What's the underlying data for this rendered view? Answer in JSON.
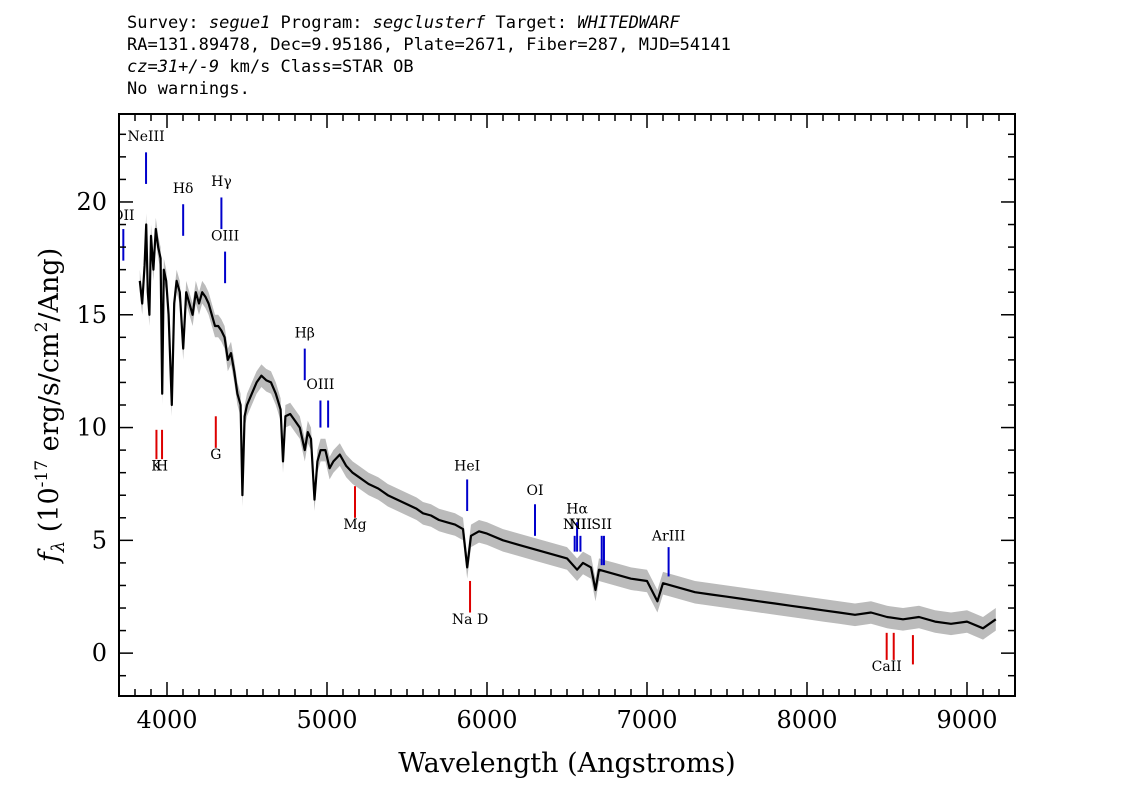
{
  "header": {
    "line1": {
      "survey_label": "Survey: ",
      "survey": "segue1",
      "program_label": " Program: ",
      "program": "segclusterf",
      "target_label": " Target: ",
      "target": "WHITEDWARF"
    },
    "line2": "RA=131.89478, Dec=9.95186, Plate=2671, Fiber=287, MJD=54141",
    "line3": {
      "cz": "cz=31+/-9",
      "rest": " km/s Class=STAR OB"
    },
    "line4": "No warnings."
  },
  "chart_data": {
    "type": "line",
    "xlabel": "Wavelength (Angstroms)",
    "ylabel": "f_λ (10^-17 erg/s/cm^2/Ang)",
    "ylabel_parts": {
      "f": "f",
      "sub": "λ",
      "pre": " (10",
      "exp": "-17",
      "mid": " erg/s/cm",
      "exp2": "2",
      "post": "/Ang)"
    },
    "xlim": [
      3700,
      9300
    ],
    "ylim": [
      -1.9,
      23.9
    ],
    "xticks": [
      4000,
      5000,
      6000,
      7000,
      8000,
      9000
    ],
    "yticks": [
      0,
      5,
      10,
      15,
      20
    ],
    "grid": false,
    "colors": {
      "flux": "#000000",
      "error_band": "#bbbbbb",
      "emission": "#0000cc",
      "absorption": "#dd0000"
    },
    "series": [
      {
        "x": [
          3830,
          3845,
          3860,
          3870,
          3880,
          3890,
          3900,
          3915,
          3930,
          3945,
          3960,
          3970,
          3980,
          3995,
          4010,
          4030,
          4045,
          4060,
          4080,
          4101,
          4120,
          4140,
          4160,
          4180,
          4200,
          4220,
          4240,
          4260,
          4280,
          4300,
          4320,
          4340,
          4360,
          4380,
          4400,
          4420,
          4440,
          4460,
          4471,
          4485,
          4500,
          4530,
          4560,
          4590,
          4620,
          4650,
          4680,
          4710,
          4725,
          4740,
          4770,
          4800,
          4830,
          4861,
          4880,
          4900,
          4922,
          4940,
          4960,
          4990,
          5016,
          5040,
          5080,
          5120,
          5160,
          5200,
          5260,
          5320,
          5380,
          5440,
          5500,
          5560,
          5600,
          5650,
          5700,
          5750,
          5800,
          5850,
          5876,
          5900,
          5950,
          6000,
          6100,
          6200,
          6300,
          6400,
          6500,
          6563,
          6600,
          6650,
          6678,
          6700,
          6750,
          6800,
          6900,
          7000,
          7065,
          7100,
          7200,
          7300,
          7400,
          7500,
          7600,
          7700,
          7800,
          7900,
          8000,
          8100,
          8200,
          8300,
          8400,
          8500,
          8600,
          8700,
          8800,
          8900,
          9000,
          9100,
          9180
        ],
        "y": [
          16.5,
          15.5,
          17.2,
          19.0,
          16.0,
          15.0,
          18.5,
          17.0,
          18.8,
          18.0,
          17.5,
          11.5,
          17.0,
          16.5,
          15.0,
          11.0,
          15.5,
          16.5,
          16.0,
          13.5,
          16.0,
          15.5,
          15.0,
          16.0,
          15.5,
          16.0,
          15.8,
          15.5,
          15.0,
          14.5,
          14.5,
          14.3,
          14.0,
          13.0,
          13.3,
          12.5,
          11.5,
          11.0,
          7.0,
          10.5,
          11.0,
          11.5,
          12.0,
          12.3,
          12.1,
          12.0,
          11.5,
          10.8,
          8.5,
          10.5,
          10.6,
          10.3,
          10.0,
          9.0,
          9.8,
          9.5,
          6.8,
          8.5,
          9.0,
          9.0,
          8.2,
          8.5,
          8.8,
          8.3,
          8.0,
          7.8,
          7.5,
          7.3,
          7.0,
          6.8,
          6.6,
          6.4,
          6.2,
          6.1,
          5.9,
          5.8,
          5.7,
          5.5,
          3.8,
          5.2,
          5.4,
          5.3,
          5.0,
          4.8,
          4.6,
          4.4,
          4.2,
          3.7,
          4.0,
          3.8,
          2.8,
          3.7,
          3.6,
          3.5,
          3.3,
          3.2,
          2.3,
          3.1,
          2.9,
          2.7,
          2.6,
          2.5,
          2.4,
          2.3,
          2.2,
          2.1,
          2.0,
          1.9,
          1.8,
          1.7,
          1.8,
          1.6,
          1.5,
          1.6,
          1.4,
          1.3,
          1.4,
          1.1,
          1.5
        ]
      }
    ],
    "line_markers": [
      {
        "label": "OII",
        "x": 3727,
        "type": "emission",
        "ylow": 17.4,
        "yhigh": 18.8,
        "ly": 19.2
      },
      {
        "label": "NeIII",
        "x": 3869,
        "type": "emission",
        "ylow": 20.8,
        "yhigh": 22.2,
        "ly": 22.7
      },
      {
        "label": "Hδ",
        "x": 4101,
        "type": "emission",
        "ylow": 18.5,
        "yhigh": 19.9,
        "ly": 20.4
      },
      {
        "label": "Hγ",
        "x": 4340,
        "type": "emission",
        "ylow": 18.8,
        "yhigh": 20.2,
        "ly": 20.7
      },
      {
        "label": "OIII",
        "x": 4363,
        "type": "emission",
        "ylow": 16.4,
        "yhigh": 17.8,
        "ly": 18.3
      },
      {
        "label": "Hβ",
        "x": 4861,
        "type": "emission",
        "ylow": 12.1,
        "yhigh": 13.5,
        "ly": 14.0
      },
      {
        "label": "OIII",
        "x": 4959,
        "type": "emission",
        "ylow": 10.0,
        "yhigh": 11.2,
        "ly": 11.7
      },
      {
        "label": "",
        "x": 5007,
        "type": "emission",
        "ylow": 10.0,
        "yhigh": 11.2,
        "ly": 11.7
      },
      {
        "label": "HeI",
        "x": 5876,
        "type": "emission",
        "ylow": 6.3,
        "yhigh": 7.7,
        "ly": 8.1
      },
      {
        "label": "OI",
        "x": 6300,
        "type": "emission",
        "ylow": 5.2,
        "yhigh": 6.6,
        "ly": 7.0
      },
      {
        "label": "NII",
        "x": 6548,
        "type": "emission",
        "ylow": 4.5,
        "yhigh": 5.2,
        "ly": 5.5
      },
      {
        "label": "Hα",
        "x": 6563,
        "type": "emission",
        "ylow": 4.5,
        "yhigh": 5.8,
        "ly": 6.2
      },
      {
        "label": "NII",
        "x": 6584,
        "type": "emission",
        "ylow": 4.5,
        "yhigh": 5.2,
        "ly": 5.5
      },
      {
        "label": "SII",
        "x": 6717,
        "type": "emission",
        "ylow": 3.9,
        "yhigh": 5.2,
        "ly": 5.5
      },
      {
        "label": "",
        "x": 6731,
        "type": "emission",
        "ylow": 3.9,
        "yhigh": 5.2,
        "ly": 5.5
      },
      {
        "label": "ArIII",
        "x": 7135,
        "type": "emission",
        "ylow": 3.4,
        "yhigh": 4.7,
        "ly": 5.0
      },
      {
        "label": "K",
        "x": 3934,
        "type": "absorption",
        "ylow": 8.6,
        "yhigh": 9.9,
        "ly": 8.1
      },
      {
        "label": "H",
        "x": 3969,
        "type": "absorption",
        "ylow": 8.6,
        "yhigh": 9.9,
        "ly": 8.1
      },
      {
        "label": "G",
        "x": 4305,
        "type": "absorption",
        "ylow": 9.1,
        "yhigh": 10.5,
        "ly": 8.6
      },
      {
        "label": "Mg",
        "x": 5175,
        "type": "absorption",
        "ylow": 6.0,
        "yhigh": 7.4,
        "ly": 5.5
      },
      {
        "label": "Na D",
        "x": 5894,
        "type": "absorption",
        "ylow": 1.8,
        "yhigh": 3.2,
        "ly": 1.3
      },
      {
        "label": "CaII",
        "x": 8498,
        "type": "absorption",
        "ylow": -0.3,
        "yhigh": 0.9,
        "ly": -0.8
      },
      {
        "label": "",
        "x": 8542,
        "type": "absorption",
        "ylow": -0.3,
        "yhigh": 0.9,
        "ly": -0.8
      },
      {
        "label": "",
        "x": 8662,
        "type": "absorption",
        "ylow": -0.5,
        "yhigh": 0.8,
        "ly": -1.0
      }
    ]
  }
}
